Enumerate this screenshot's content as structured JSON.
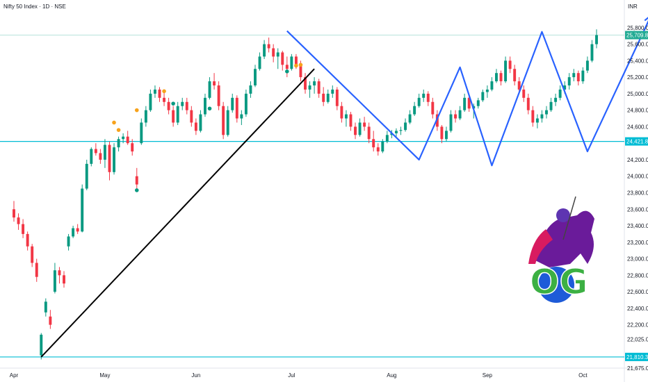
{
  "header": {
    "title": "Nifty 50 Index · 1D · NSE",
    "currency": "INR"
  },
  "colors": {
    "up": "#089981",
    "down": "#f23645",
    "pattern": "#2962ff",
    "trend": "#000000",
    "level": "#00bcd4",
    "marker": "#f7a21b",
    "badge": "#22ab94",
    "logo_green": "#3cb043",
    "logo_purple": "#6a1b9a"
  },
  "logo": {
    "text": "OG",
    "icon": "knight-horse-logo"
  },
  "chart_data": {
    "type": "candlestick",
    "title": "",
    "xlabel": "",
    "ylabel": "",
    "ylim": [
      21675,
      25950
    ],
    "y_ticks": [
      "25,800.00",
      "25,600.00",
      "25,400.00",
      "25,200.00",
      "25,000.00",
      "24,800.00",
      "24,600.00",
      "24,200.00",
      "24,000.00",
      "23,800.00",
      "23,600.00",
      "23,400.00",
      "23,200.00",
      "23,000.00",
      "22,800.00",
      "22,600.00",
      "22,400.00",
      "22,200.00",
      "22,025.00",
      "21,675.00"
    ],
    "y_tick_values": [
      25800,
      25600,
      25400,
      25200,
      25000,
      24800,
      24600,
      24200,
      24000,
      23800,
      23600,
      23400,
      23200,
      23000,
      22800,
      22600,
      22400,
      22200,
      22025,
      21675
    ],
    "x_ticks": [
      {
        "label": "Apr",
        "index": 0
      },
      {
        "label": "May",
        "index": 20
      },
      {
        "label": "Jun",
        "index": 40
      },
      {
        "label": "Jul",
        "index": 61
      },
      {
        "label": "Aug",
        "index": 83
      },
      {
        "label": "Sep",
        "index": 104
      },
      {
        "label": "Oct",
        "index": 125
      }
    ],
    "candles": [
      [
        23600,
        23700,
        23450,
        23500
      ],
      [
        23500,
        23550,
        23350,
        23420
      ],
      [
        23420,
        23480,
        23250,
        23300
      ],
      [
        23300,
        23330,
        23100,
        23150
      ],
      [
        23150,
        23180,
        22900,
        22950
      ],
      [
        22950,
        23000,
        22720,
        22780
      ],
      [
        21830,
        22100,
        21780,
        22080
      ],
      [
        22350,
        22520,
        22300,
        22480
      ],
      [
        22300,
        22380,
        22150,
        22200
      ],
      [
        22600,
        22950,
        22580,
        22860
      ],
      [
        22860,
        22900,
        22700,
        22800
      ],
      [
        22800,
        22850,
        22650,
        22700
      ],
      [
        23150,
        23300,
        23100,
        23270
      ],
      [
        23270,
        23400,
        23250,
        23370
      ],
      [
        23370,
        23420,
        23300,
        23330
      ],
      [
        23330,
        23900,
        23320,
        23850
      ],
      [
        23850,
        24200,
        23830,
        24150
      ],
      [
        24150,
        24350,
        24120,
        24330
      ],
      [
        24330,
        24400,
        24250,
        24280
      ],
      [
        24280,
        24330,
        24150,
        24200
      ],
      [
        24200,
        24450,
        24100,
        24380
      ],
      [
        24380,
        24420,
        23950,
        24050
      ],
      [
        24050,
        24400,
        24020,
        24350
      ],
      [
        24350,
        24480,
        24300,
        24450
      ],
      [
        24450,
        24520,
        24400,
        24480
      ],
      [
        24480,
        24550,
        24380,
        24400
      ],
      [
        24400,
        24450,
        24250,
        24300
      ],
      [
        24000,
        24100,
        23850,
        23900
      ],
      [
        24400,
        24700,
        24380,
        24650
      ],
      [
        24650,
        24850,
        24600,
        24800
      ],
      [
        24800,
        25050,
        24780,
        25000
      ],
      [
        25000,
        25100,
        24950,
        25050
      ],
      [
        25050,
        25080,
        24900,
        24950
      ],
      [
        24950,
        25020,
        24850,
        24900
      ],
      [
        24900,
        24950,
        24750,
        24800
      ],
      [
        24800,
        24850,
        24600,
        24650
      ],
      [
        24650,
        24900,
        24620,
        24850
      ],
      [
        24850,
        24950,
        24800,
        24900
      ],
      [
        24900,
        24950,
        24750,
        24800
      ],
      [
        24800,
        24850,
        24600,
        24650
      ],
      [
        24650,
        24700,
        24500,
        24550
      ],
      [
        24550,
        24800,
        24530,
        24750
      ],
      [
        24750,
        25000,
        24720,
        24950
      ],
      [
        24950,
        25200,
        24930,
        25150
      ],
      [
        25150,
        25250,
        25050,
        25100
      ],
      [
        25100,
        25150,
        24800,
        24850
      ],
      [
        24850,
        24900,
        24450,
        24500
      ],
      [
        24500,
        24850,
        24480,
        24800
      ],
      [
        24800,
        25000,
        24770,
        24950
      ],
      [
        24950,
        24980,
        24650,
        24700
      ],
      [
        24700,
        24800,
        24620,
        24750
      ],
      [
        24750,
        25050,
        24720,
        25000
      ],
      [
        25000,
        25150,
        24950,
        25100
      ],
      [
        25100,
        25350,
        25080,
        25300
      ],
      [
        25300,
        25500,
        25280,
        25450
      ],
      [
        25450,
        25650,
        25420,
        25600
      ],
      [
        25600,
        25680,
        25500,
        25550
      ],
      [
        25550,
        25600,
        25380,
        25450
      ],
      [
        25450,
        25550,
        25300,
        25500
      ],
      [
        25500,
        25520,
        25280,
        25350
      ],
      [
        25350,
        25450,
        25200,
        25300
      ],
      [
        25300,
        25480,
        25280,
        25450
      ],
      [
        25450,
        25480,
        25300,
        25350
      ],
      [
        25350,
        25400,
        25150,
        25200
      ],
      [
        25200,
        25250,
        25000,
        25050
      ],
      [
        25050,
        25150,
        24950,
        25100
      ],
      [
        25100,
        25200,
        25000,
        25150
      ],
      [
        25150,
        25180,
        24950,
        25000
      ],
      [
        25000,
        25080,
        24850,
        24900
      ],
      [
        24900,
        25050,
        24880,
        25000
      ],
      [
        25000,
        25100,
        24950,
        25050
      ],
      [
        25050,
        25080,
        24800,
        24850
      ],
      [
        24850,
        24900,
        24650,
        24700
      ],
      [
        24700,
        24800,
        24600,
        24750
      ],
      [
        24750,
        24780,
        24550,
        24600
      ],
      [
        24600,
        24650,
        24450,
        24500
      ],
      [
        24500,
        24700,
        24480,
        24650
      ],
      [
        24650,
        24720,
        24550,
        24600
      ],
      [
        24600,
        24650,
        24400,
        24450
      ],
      [
        24450,
        24550,
        24300,
        24350
      ],
      [
        24350,
        24400,
        24250,
        24300
      ],
      [
        24300,
        24450,
        24280,
        24420
      ],
      [
        24420,
        24550,
        24400,
        24500
      ],
      [
        24500,
        24560,
        24460,
        24520
      ],
      [
        24520,
        24580,
        24480,
        24550
      ],
      [
        24550,
        24600,
        24500,
        24560
      ],
      [
        24560,
        24700,
        24540,
        24650
      ],
      [
        24650,
        24800,
        24630,
        24750
      ],
      [
        24750,
        24900,
        24730,
        24850
      ],
      [
        24850,
        25000,
        24830,
        24950
      ],
      [
        24950,
        25050,
        24900,
        25000
      ],
      [
        25000,
        25030,
        24850,
        24900
      ],
      [
        24900,
        24950,
        24700,
        24750
      ],
      [
        24750,
        24800,
        24550,
        24600
      ],
      [
        24600,
        24620,
        24400,
        24450
      ],
      [
        24450,
        24600,
        24420,
        24550
      ],
      [
        24550,
        24800,
        24530,
        24750
      ],
      [
        24750,
        24800,
        24650,
        24700
      ],
      [
        24700,
        24850,
        24680,
        24800
      ],
      [
        24800,
        25000,
        24780,
        24950
      ],
      [
        24950,
        24980,
        24780,
        24820
      ],
      [
        24820,
        24880,
        24700,
        24850
      ],
      [
        24850,
        24950,
        24820,
        24920
      ],
      [
        24920,
        25050,
        24900,
        25020
      ],
      [
        25020,
        25100,
        24950,
        25050
      ],
      [
        25050,
        25200,
        25030,
        25150
      ],
      [
        25150,
        25300,
        25130,
        25250
      ],
      [
        25250,
        25280,
        25100,
        25150
      ],
      [
        25150,
        25450,
        25130,
        25400
      ],
      [
        25400,
        25450,
        25250,
        25300
      ],
      [
        25300,
        25350,
        25100,
        25150
      ],
      [
        25150,
        25200,
        25000,
        25050
      ],
      [
        25050,
        25100,
        24900,
        24950
      ],
      [
        24950,
        25000,
        24750,
        24800
      ],
      [
        24800,
        24850,
        24600,
        24650
      ],
      [
        24650,
        24750,
        24580,
        24700
      ],
      [
        24700,
        24800,
        24650,
        24750
      ],
      [
        24750,
        24850,
        24700,
        24800
      ],
      [
        24800,
        24950,
        24780,
        24900
      ],
      [
        24900,
        25000,
        24850,
        24950
      ],
      [
        24950,
        25100,
        24920,
        25050
      ],
      [
        25050,
        25150,
        25000,
        25100
      ],
      [
        25100,
        25250,
        25050,
        25200
      ],
      [
        25200,
        25300,
        25150,
        25250
      ],
      [
        25250,
        25280,
        25100,
        25150
      ],
      [
        25150,
        25320,
        25120,
        25280
      ],
      [
        25280,
        25450,
        25250,
        25400
      ],
      [
        25400,
        25650,
        25380,
        25600
      ],
      [
        25600,
        25780,
        25550,
        25709.85
      ]
    ],
    "markers": [
      {
        "index": 22,
        "value": 24650,
        "kind": "orange"
      },
      {
        "index": 23,
        "value": 24560,
        "kind": "orange"
      },
      {
        "index": 27,
        "value": 24800,
        "kind": "orange"
      },
      {
        "index": 33,
        "value": 25030,
        "kind": "orange"
      },
      {
        "index": 62,
        "value": 25340,
        "kind": "orange"
      },
      {
        "index": 63,
        "value": 25350,
        "kind": "orange"
      },
      {
        "index": 27,
        "value": 23830,
        "kind": "green"
      },
      {
        "index": 35,
        "value": 24880,
        "kind": "green"
      },
      {
        "index": 43,
        "value": 24820,
        "kind": "green"
      },
      {
        "index": 60,
        "value": 25270,
        "kind": "green"
      }
    ],
    "levels": [
      {
        "value": 24421.8,
        "label": "24,421.80"
      },
      {
        "value": 21810.35,
        "label": "21,810.35"
      },
      {
        "value": 25709.85,
        "label": "25,709.85"
      }
    ],
    "trendline": [
      [
        6,
        21810
      ],
      [
        66,
        25300
      ]
    ],
    "zigzag": [
      [
        60,
        25760
      ],
      [
        89,
        24200
      ],
      [
        98,
        25320
      ],
      [
        105,
        24130
      ],
      [
        116,
        25750
      ],
      [
        126,
        24300
      ],
      [
        140,
        25950
      ]
    ]
  }
}
